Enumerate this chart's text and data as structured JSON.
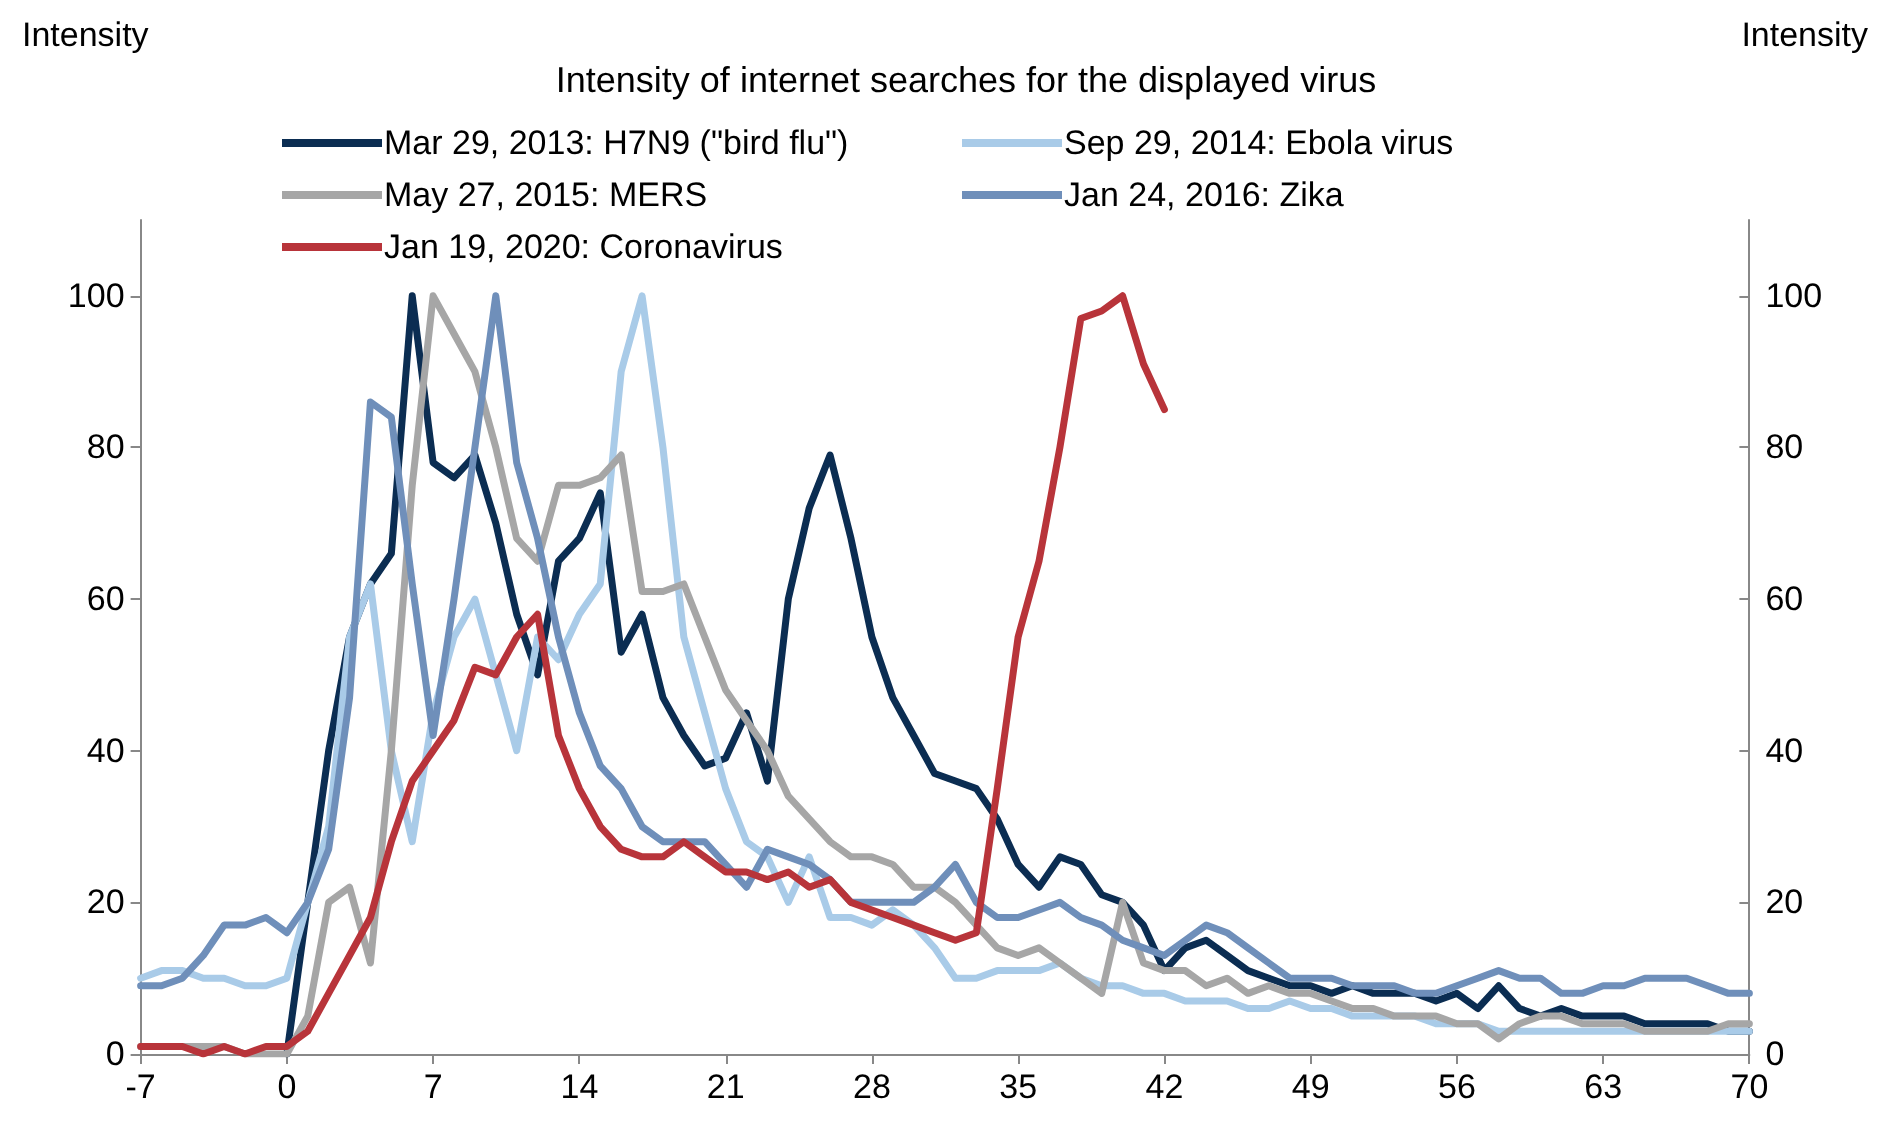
{
  "chart_data": {
    "type": "line",
    "title": "Intensity of internet searches for the displayed virus",
    "ylabel": "Intensity",
    "y2label": "Intensity",
    "x": [
      -7,
      -6,
      -5,
      -4,
      -3,
      -2,
      -1,
      0,
      1,
      2,
      3,
      4,
      5,
      6,
      7,
      8,
      9,
      10,
      11,
      12,
      13,
      14,
      15,
      16,
      17,
      18,
      19,
      20,
      21,
      22,
      23,
      24,
      25,
      26,
      27,
      28,
      29,
      30,
      31,
      32,
      33,
      34,
      35,
      36,
      37,
      38,
      39,
      40,
      41,
      42,
      43,
      44,
      45,
      46,
      47,
      48,
      49,
      50,
      51,
      52,
      53,
      54,
      55,
      56,
      57,
      58,
      59,
      60,
      61,
      62,
      63,
      64,
      65,
      66,
      67,
      68,
      69,
      70
    ],
    "series": [
      {
        "name": "Mar 29, 2013: H7N9 (\"bird flu\")",
        "color": "#0b2d52",
        "values": [
          null,
          null,
          null,
          null,
          null,
          null,
          null,
          0,
          20,
          40,
          55,
          62,
          66,
          100,
          78,
          76,
          79,
          70,
          58,
          50,
          65,
          68,
          74,
          53,
          58,
          47,
          42,
          38,
          39,
          45,
          36,
          60,
          72,
          79,
          68,
          55,
          47,
          42,
          37,
          36,
          35,
          31,
          25,
          22,
          26,
          25,
          21,
          20,
          17,
          11,
          14,
          15,
          13,
          11,
          10,
          9,
          9,
          8,
          9,
          8,
          8,
          8,
          7,
          8,
          6,
          9,
          6,
          5,
          6,
          5,
          5,
          5,
          4,
          4,
          4,
          4,
          3,
          3
        ]
      },
      {
        "name": "Sep 29, 2014: Ebola virus",
        "color": "#a9cbe8",
        "values": [
          10,
          11,
          11,
          10,
          10,
          9,
          9,
          10,
          20,
          30,
          55,
          62,
          40,
          28,
          45,
          55,
          60,
          50,
          40,
          55,
          52,
          58,
          62,
          90,
          100,
          80,
          55,
          45,
          35,
          28,
          26,
          20,
          26,
          18,
          18,
          17,
          19,
          17,
          14,
          10,
          10,
          11,
          11,
          11,
          12,
          10,
          9,
          9,
          8,
          8,
          7,
          7,
          7,
          6,
          6,
          7,
          6,
          6,
          5,
          5,
          5,
          5,
          4,
          4,
          4,
          3,
          3,
          3,
          3,
          3,
          3,
          3,
          3,
          3,
          3,
          3,
          3,
          3
        ]
      },
      {
        "name": "May 27, 2015: MERS",
        "color": "#a6a6a6",
        "values": [
          1,
          1,
          1,
          1,
          1,
          0,
          0,
          0,
          5,
          20,
          22,
          12,
          40,
          75,
          100,
          95,
          90,
          80,
          68,
          65,
          75,
          75,
          76,
          79,
          61,
          61,
          62,
          55,
          48,
          44,
          40,
          34,
          31,
          28,
          26,
          26,
          25,
          22,
          22,
          20,
          17,
          14,
          13,
          14,
          12,
          10,
          8,
          20,
          12,
          11,
          11,
          9,
          10,
          8,
          9,
          8,
          8,
          7,
          6,
          6,
          5,
          5,
          5,
          4,
          4,
          2,
          4,
          5,
          5,
          4,
          4,
          4,
          3,
          3,
          3,
          3,
          4,
          4
        ]
      },
      {
        "name": "Jan 24, 2016: Zika",
        "color": "#6f8fba",
        "values": [
          9,
          9,
          10,
          13,
          17,
          17,
          18,
          16,
          20,
          27,
          47,
          86,
          84,
          62,
          42,
          60,
          80,
          100,
          78,
          68,
          55,
          45,
          38,
          35,
          30,
          28,
          28,
          28,
          25,
          22,
          27,
          26,
          25,
          23,
          20,
          20,
          20,
          20,
          22,
          25,
          20,
          18,
          18,
          19,
          20,
          18,
          17,
          15,
          14,
          13,
          15,
          17,
          16,
          14,
          12,
          10,
          10,
          10,
          9,
          9,
          9,
          8,
          8,
          9,
          10,
          11,
          10,
          10,
          8,
          8,
          9,
          9,
          10,
          10,
          10,
          9,
          8,
          8
        ]
      },
      {
        "name": "Jan 19, 2020: Coronavirus",
        "color": "#b8343a",
        "values": [
          1,
          1,
          1,
          0,
          1,
          0,
          1,
          1,
          3,
          8,
          13,
          18,
          28,
          36,
          40,
          44,
          51,
          50,
          55,
          58,
          42,
          35,
          30,
          27,
          26,
          26,
          28,
          26,
          24,
          24,
          23,
          24,
          22,
          23,
          20,
          19,
          18,
          17,
          16,
          15,
          16,
          35,
          55,
          65,
          80,
          97,
          98,
          100,
          91,
          85,
          null,
          null,
          null,
          null,
          null,
          null,
          null,
          null,
          null,
          null,
          null,
          null,
          null,
          null,
          null,
          null,
          null,
          null,
          null,
          null,
          null,
          null,
          null,
          null,
          null,
          null,
          null,
          null
        ]
      }
    ],
    "xlim": [
      -7,
      70
    ],
    "xticks": [
      -7,
      0,
      7,
      14,
      21,
      28,
      35,
      42,
      49,
      56,
      63,
      70
    ],
    "ylim": [
      0,
      110
    ],
    "yticks": [
      0,
      20,
      40,
      60,
      80,
      100
    ],
    "y2lim": [
      0,
      110
    ],
    "y2ticks": [
      0,
      20,
      40,
      60,
      80,
      100
    ],
    "grid": false,
    "legend": "top",
    "marker": "none",
    "line_style": "solid"
  }
}
